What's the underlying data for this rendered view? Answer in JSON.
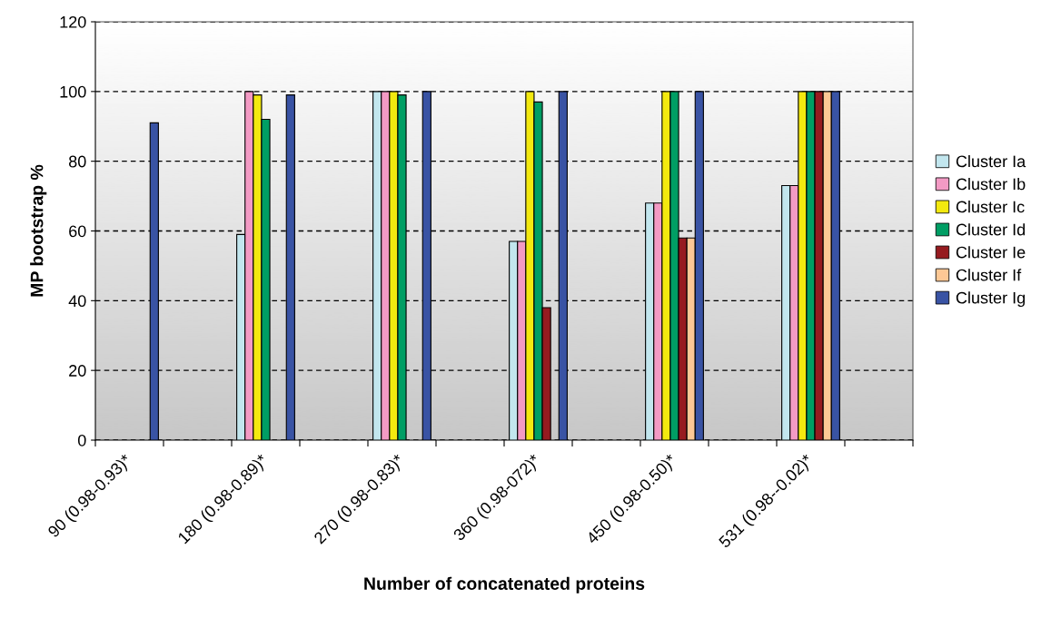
{
  "chart_data": {
    "type": "bar",
    "xlabel": "Number of concatenated proteins",
    "ylabel": "MP bootstrap %",
    "categories": [
      "90 (0.98-0.93)*",
      null,
      "180 (0.98-0.89)*",
      null,
      "270 (0.98-0.83)*",
      null,
      "360 (0.98-072)*",
      null,
      "450 (0.98-0.50)*",
      null,
      "531 (0.98--0.02)*",
      null
    ],
    "series": [
      {
        "name": "Cluster Ia",
        "color": "#c2e6ee",
        "values": [
          null,
          null,
          59,
          null,
          100,
          null,
          57,
          null,
          68,
          null,
          73,
          null
        ]
      },
      {
        "name": "Cluster Ib",
        "color": "#f39ac4",
        "values": [
          null,
          null,
          100,
          null,
          100,
          null,
          57,
          null,
          68,
          null,
          73,
          null
        ]
      },
      {
        "name": "Cluster Ic",
        "color": "#f3e90f",
        "values": [
          null,
          null,
          99,
          null,
          100,
          null,
          100,
          null,
          100,
          null,
          100,
          null
        ]
      },
      {
        "name": "Cluster Id",
        "color": "#009e64",
        "values": [
          null,
          null,
          92,
          null,
          99,
          null,
          97,
          null,
          100,
          null,
          100,
          null
        ]
      },
      {
        "name": "Cluster Ie",
        "color": "#961b20",
        "values": [
          null,
          null,
          null,
          null,
          null,
          null,
          38,
          null,
          58,
          null,
          100,
          null
        ]
      },
      {
        "name": "Cluster If",
        "color": "#fdc895",
        "values": [
          null,
          null,
          null,
          null,
          null,
          null,
          null,
          null,
          58,
          null,
          100,
          null
        ]
      },
      {
        "name": "Cluster Ig",
        "color": "#3953a4",
        "values": [
          91,
          null,
          99,
          null,
          100,
          null,
          100,
          null,
          100,
          null,
          100,
          null
        ]
      }
    ],
    "ylim": [
      0,
      120
    ],
    "yticks": [
      0,
      20,
      40,
      60,
      80,
      100,
      120
    ],
    "grid": "y",
    "legend": "right"
  }
}
